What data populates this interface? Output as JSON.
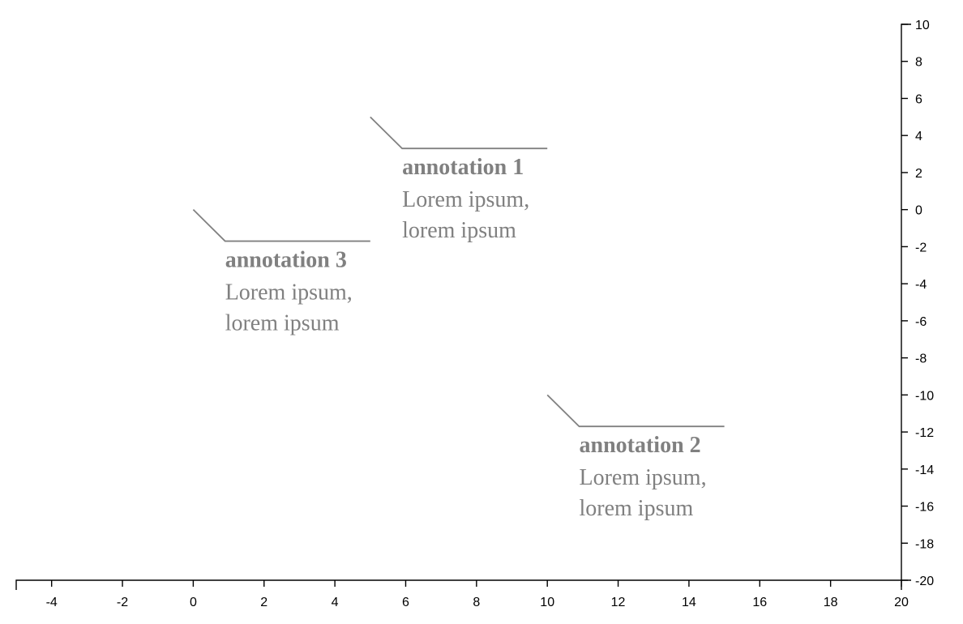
{
  "chart_data": {
    "type": "scatter",
    "title": "",
    "xlabel": "",
    "ylabel": "",
    "xlim": [
      -5,
      20
    ],
    "ylim": [
      -20,
      10
    ],
    "x_ticks": [
      -4,
      -2,
      0,
      2,
      4,
      6,
      8,
      10,
      12,
      14,
      16,
      18,
      20
    ],
    "y_ticks": [
      10,
      8,
      6,
      4,
      2,
      0,
      -2,
      -4,
      -6,
      -8,
      -10,
      -12,
      -14,
      -16,
      -18,
      -20
    ],
    "y_axis_position": "right",
    "grid": false,
    "annotation_color": "#808080",
    "annotations": [
      {
        "title": "annotation 1",
        "label_lines": [
          "Lorem ipsum,",
          "lorem ipsum"
        ],
        "x": 5,
        "y": 5,
        "dx": 0.9,
        "dy": -1.7,
        "line_end_x": 10
      },
      {
        "title": "annotation 2",
        "label_lines": [
          "Lorem ipsum,",
          "lorem ipsum"
        ],
        "x": 10,
        "y": -10,
        "dx": 0.9,
        "dy": -1.7,
        "line_end_x": 15
      },
      {
        "title": "annotation 3",
        "label_lines": [
          "Lorem ipsum,",
          "lorem ipsum"
        ],
        "x": 0,
        "y": 0,
        "dx": 0.9,
        "dy": -1.7,
        "line_end_x": 5
      }
    ]
  }
}
